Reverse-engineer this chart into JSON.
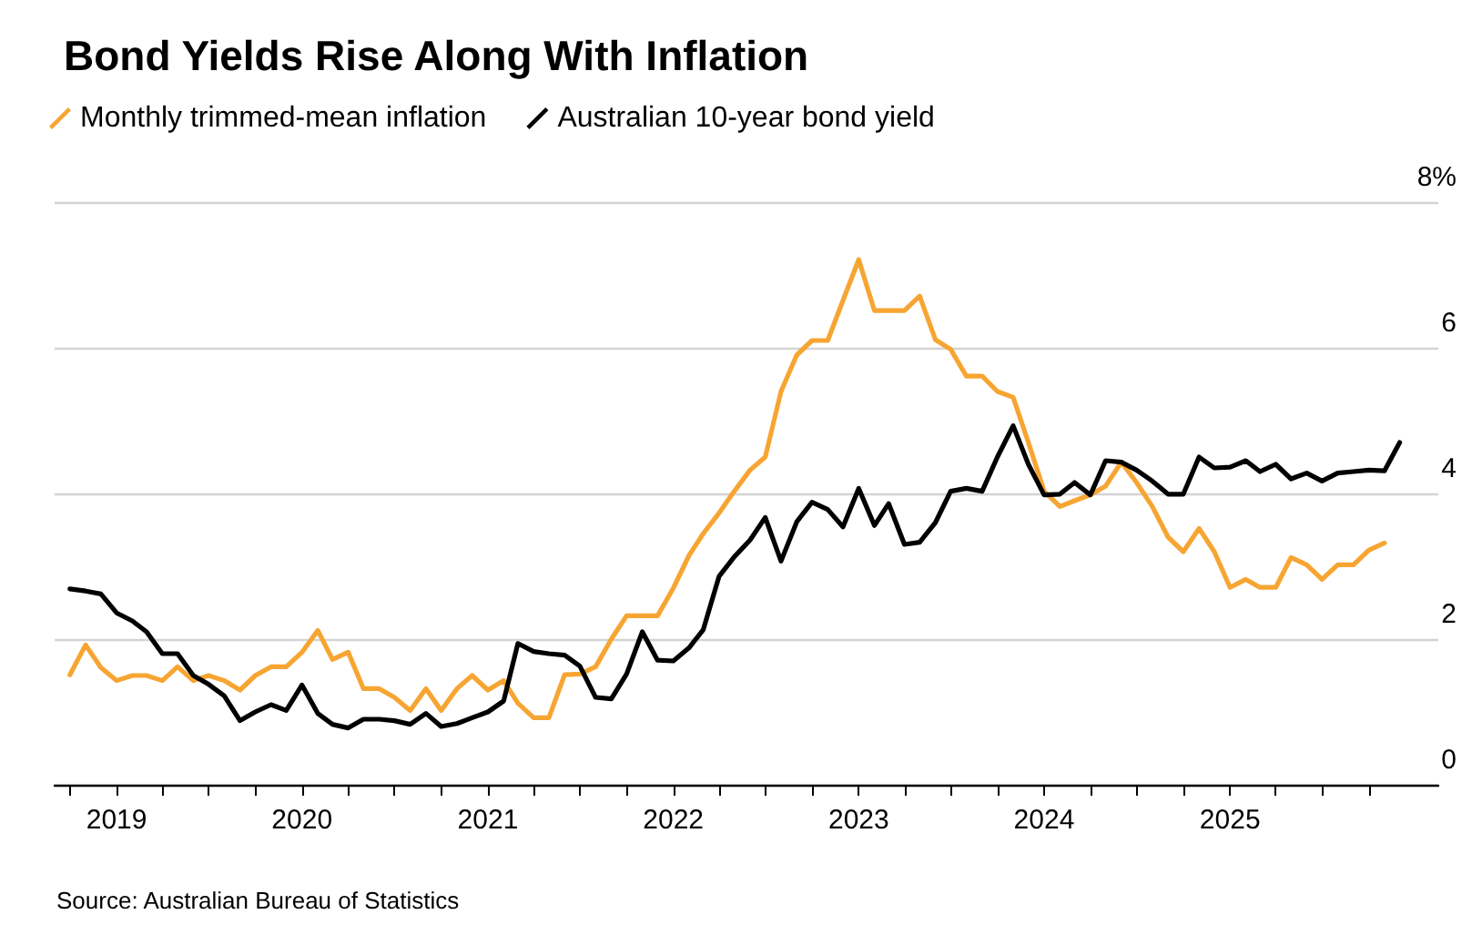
{
  "chart_data": {
    "type": "line",
    "title": "Bond Yields Rise Along With Inflation",
    "x": [
      "2018-10",
      "2018-11",
      "2018-12",
      "2019-01",
      "2019-02",
      "2019-03",
      "2019-04",
      "2019-05",
      "2019-06",
      "2019-07",
      "2019-08",
      "2019-09",
      "2019-10",
      "2019-11",
      "2019-12",
      "2020-01",
      "2020-02",
      "2020-03",
      "2020-04",
      "2020-05",
      "2020-06",
      "2020-07",
      "2020-08",
      "2020-09",
      "2020-10",
      "2020-11",
      "2020-12",
      "2021-01",
      "2021-02",
      "2021-03",
      "2021-04",
      "2021-05",
      "2021-06",
      "2021-07",
      "2021-08",
      "2021-09",
      "2021-10",
      "2021-11",
      "2021-12",
      "2022-01",
      "2022-02",
      "2022-03",
      "2022-04",
      "2022-05",
      "2022-06",
      "2022-07",
      "2022-08",
      "2022-09",
      "2022-10",
      "2022-11",
      "2022-12",
      "2023-01",
      "2023-02",
      "2023-03",
      "2023-04",
      "2023-05",
      "2023-06",
      "2023-07",
      "2023-08",
      "2023-09",
      "2023-10",
      "2023-11",
      "2023-12",
      "2024-01",
      "2024-02",
      "2024-03",
      "2024-04",
      "2024-05",
      "2024-06",
      "2024-07",
      "2024-08",
      "2024-09",
      "2024-10",
      "2024-11",
      "2024-12",
      "2025-01",
      "2025-02",
      "2025-03",
      "2025-04",
      "2025-05",
      "2025-06",
      "2025-07",
      "2025-08",
      "2025-09",
      "2025-10",
      "2025-11",
      "2025-12"
    ],
    "series": [
      {
        "name": "Monthly trimmed-mean inflation",
        "color": "#f7a532",
        "values": [
          1.51,
          1.92,
          1.61,
          1.43,
          1.5,
          1.5,
          1.43,
          1.62,
          1.43,
          1.5,
          1.43,
          1.3,
          1.5,
          1.62,
          1.62,
          1.82,
          2.12,
          1.72,
          1.82,
          1.32,
          1.32,
          1.2,
          1.02,
          1.32,
          1.02,
          1.32,
          1.5,
          1.3,
          1.43,
          1.12,
          0.92,
          0.92,
          1.51,
          1.52,
          1.62,
          2.0,
          2.32,
          2.32,
          2.32,
          2.7,
          3.15,
          3.45,
          3.73,
          4.03,
          4.32,
          4.5,
          5.4,
          5.9,
          6.1,
          6.1,
          6.65,
          7.21,
          6.51,
          6.51,
          6.51,
          6.71,
          6.11,
          5.98,
          5.61,
          5.61,
          5.4,
          5.32,
          4.7,
          4.03,
          3.82,
          3.9,
          3.98,
          4.1,
          4.43,
          4.15,
          3.82,
          3.4,
          3.2,
          3.52,
          3.2,
          2.71,
          2.82,
          2.71,
          2.71,
          3.12,
          3.02,
          2.82,
          3.02,
          3.02,
          3.22,
          3.32,
          null
        ]
      },
      {
        "name": "Australian 10-year bond yield",
        "color": "#000000",
        "values": [
          2.69,
          2.66,
          2.62,
          2.36,
          2.25,
          2.1,
          1.8,
          1.8,
          1.5,
          1.38,
          1.22,
          0.88,
          1.0,
          1.1,
          1.02,
          1.37,
          0.98,
          0.83,
          0.78,
          0.9,
          0.9,
          0.88,
          0.83,
          0.98,
          0.8,
          0.84,
          0.92,
          1.0,
          1.15,
          1.94,
          1.83,
          1.8,
          1.78,
          1.63,
          1.2,
          1.18,
          1.52,
          2.1,
          1.71,
          1.7,
          1.88,
          2.13,
          2.86,
          3.13,
          3.36,
          3.67,
          3.07,
          3.61,
          3.88,
          3.78,
          3.54,
          4.07,
          3.56,
          3.86,
          3.3,
          3.33,
          3.6,
          4.03,
          4.07,
          4.03,
          4.5,
          4.93,
          4.4,
          3.98,
          3.99,
          4.15,
          3.98,
          4.45,
          4.43,
          4.32,
          4.17,
          3.99,
          3.99,
          4.5,
          4.35,
          4.36,
          4.45,
          4.3,
          4.4,
          4.2,
          4.28,
          4.17,
          4.28,
          4.3,
          4.32,
          4.31,
          4.7
        ]
      }
    ],
    "xlim": [
      "2018-09-01",
      "2026-02-15"
    ],
    "xticks": [
      {
        "value": "2018-10",
        "label": null
      },
      {
        "value": "2019-01",
        "label": "2019"
      },
      {
        "value": "2019-04",
        "label": null
      },
      {
        "value": "2019-07",
        "label": null
      },
      {
        "value": "2019-10",
        "label": null
      },
      {
        "value": "2020-01",
        "label": "2020"
      },
      {
        "value": "2020-04",
        "label": null
      },
      {
        "value": "2020-07",
        "label": null
      },
      {
        "value": "2020-10",
        "label": null
      },
      {
        "value": "2021-01",
        "label": "2021"
      },
      {
        "value": "2021-04",
        "label": null
      },
      {
        "value": "2021-07",
        "label": null
      },
      {
        "value": "2021-10",
        "label": null
      },
      {
        "value": "2022-01",
        "label": "2022"
      },
      {
        "value": "2022-04",
        "label": null
      },
      {
        "value": "2022-07",
        "label": null
      },
      {
        "value": "2022-10",
        "label": null
      },
      {
        "value": "2023-01",
        "label": "2023"
      },
      {
        "value": "2023-04",
        "label": null
      },
      {
        "value": "2023-07",
        "label": null
      },
      {
        "value": "2023-10",
        "label": null
      },
      {
        "value": "2024-01",
        "label": "2024"
      },
      {
        "value": "2024-04",
        "label": null
      },
      {
        "value": "2024-07",
        "label": null
      },
      {
        "value": "2024-10",
        "label": null
      },
      {
        "value": "2025-01",
        "label": "2025"
      },
      {
        "value": "2025-04",
        "label": null
      },
      {
        "value": "2025-07",
        "label": null
      },
      {
        "value": "2025-10",
        "label": null
      }
    ],
    "ylim": [
      0,
      8
    ],
    "yticks": [
      0,
      2,
      4,
      6,
      {
        "value": 8,
        "label": "8%"
      }
    ],
    "grid": "y",
    "legend": "top left",
    "marker": "none",
    "line_style": "solid",
    "annotations": [
      "Source: Australian Bureau of Statistics"
    ]
  }
}
